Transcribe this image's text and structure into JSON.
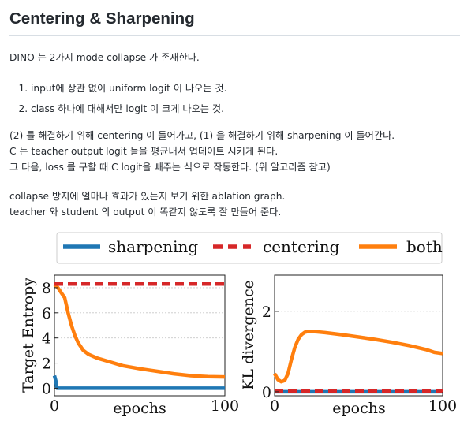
{
  "heading": "Centering & Sharpening",
  "intro": "DINO 는 2가지 mode collapse 가 존재한다.",
  "list": [
    "input에 상관 없이 uniform logit 이 나오는 것.",
    "class 하나에 대해서만 logit 이 크게 나오는 것."
  ],
  "para2": [
    "(2) 를 해결하기 위해 centering 이 들어가고, (1) 을 해결하기 위해 sharpening 이 들어간다.",
    "C 는 teacher output logit 들을 평균내서 업데이트 시키게 된다.",
    "그 다음, loss 를 구할 때 C logit을 빼주는 식으로 작동한다. (위 알고리즘 참고)"
  ],
  "para3": [
    "collapse 방지에 얼마나 효과가 있는지 보기 위한 ablation graph.",
    "teacher 와 student 의 output 이 똑같지 않도록 잘 만들어 준다."
  ],
  "chart_data": [
    {
      "type": "line",
      "xlabel": "epochs",
      "ylabel": "Target Entropy",
      "xlim": [
        0,
        100
      ],
      "ylim": [
        -0.6,
        9
      ],
      "xticks": [
        0,
        100
      ],
      "yticks": [
        0,
        2,
        4,
        6,
        8
      ],
      "legend": "top",
      "series": [
        {
          "name": "sharpening",
          "color": "#1f77b4",
          "style": "solid",
          "x": [
            0,
            0.8,
            1.5,
            100
          ],
          "y": [
            1.0,
            0.6,
            0.0,
            0.0
          ]
        },
        {
          "name": "centering",
          "color": "#d62728",
          "style": "dashed",
          "x": [
            0,
            100
          ],
          "y": [
            8.3,
            8.3
          ]
        },
        {
          "name": "both",
          "color": "#ff7f0e",
          "style": "solid",
          "x": [
            0,
            2,
            4,
            6,
            8,
            10,
            12,
            14,
            17,
            20,
            25,
            30,
            40,
            50,
            60,
            70,
            80,
            90,
            100
          ],
          "y": [
            8.3,
            8.0,
            7.6,
            7.2,
            6.0,
            5.0,
            4.2,
            3.6,
            3.0,
            2.7,
            2.4,
            2.2,
            1.8,
            1.55,
            1.35,
            1.15,
            1.0,
            0.92,
            0.9
          ]
        }
      ]
    },
    {
      "type": "line",
      "xlabel": "epochs",
      "ylabel": "KL divergence",
      "xlim": [
        0,
        100
      ],
      "ylim": [
        -0.1,
        2.9
      ],
      "xticks": [
        0,
        100
      ],
      "yticks": [
        0,
        2
      ],
      "legend": "top",
      "series": [
        {
          "name": "sharpening",
          "color": "#1f77b4",
          "style": "solid",
          "x": [
            0,
            100
          ],
          "y": [
            0.0,
            0.0
          ]
        },
        {
          "name": "centering",
          "color": "#d62728",
          "style": "dashed",
          "x": [
            0,
            100
          ],
          "y": [
            0.02,
            0.02
          ]
        },
        {
          "name": "both",
          "color": "#ff7f0e",
          "style": "solid",
          "x": [
            0,
            2,
            4,
            6,
            8,
            10,
            12,
            14,
            16,
            18,
            20,
            25,
            30,
            40,
            50,
            60,
            70,
            80,
            90,
            95,
            100
          ],
          "y": [
            0.45,
            0.3,
            0.25,
            0.28,
            0.45,
            0.8,
            1.1,
            1.3,
            1.42,
            1.48,
            1.5,
            1.49,
            1.47,
            1.42,
            1.36,
            1.3,
            1.23,
            1.15,
            1.05,
            0.98,
            0.95
          ]
        }
      ]
    }
  ]
}
